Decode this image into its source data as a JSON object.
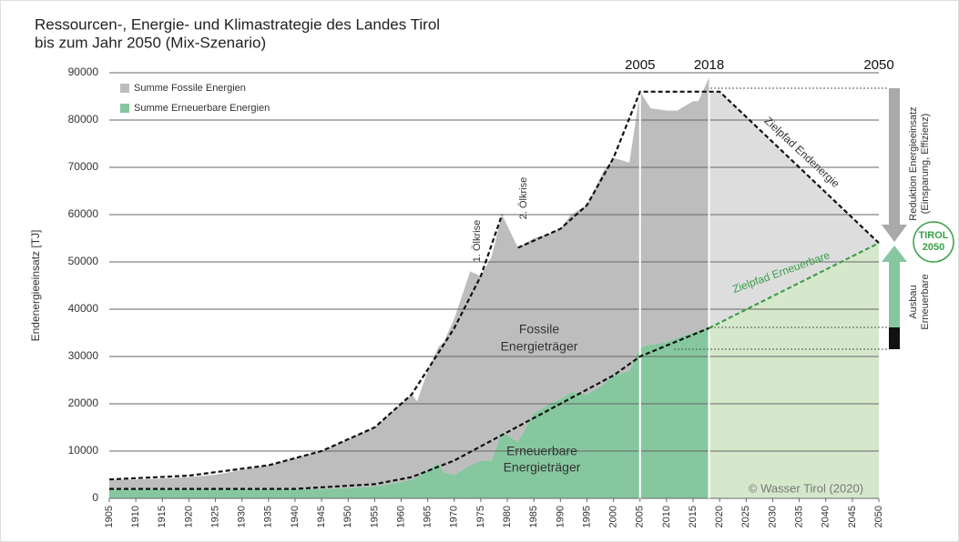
{
  "chart_data": {
    "type": "area",
    "title": "Ressourcen-, Energie- und Klimastrategie des Landes Tirol",
    "subtitle": "bis zum Jahr 2050 (Mix-Szenario)",
    "y_label": "Endenergieeinsatz [TJ]",
    "stacked": true,
    "grid": true,
    "x": [
      1905,
      1910,
      1915,
      1920,
      1925,
      1930,
      1935,
      1940,
      1945,
      1950,
      1955,
      1960,
      1962,
      1963,
      1965,
      1967,
      1968,
      1970,
      1973,
      1975,
      1977,
      1979,
      1982,
      1985,
      1988,
      1990,
      1992,
      1995,
      1998,
      2000,
      2003,
      2005,
      2007,
      2010,
      2012,
      2015,
      2016,
      2018
    ],
    "series": [
      {
        "name": "Summe Erneuerbare Energien",
        "color": "#86c79f",
        "values": [
          2000,
          2000,
          2000,
          2000,
          2000,
          2000,
          2000,
          2000,
          2000,
          2200,
          2500,
          3500,
          4000,
          4500,
          6000,
          7500,
          5500,
          5000,
          7000,
          8000,
          8000,
          14000,
          12000,
          18000,
          20000,
          21000,
          22500,
          22000,
          24000,
          26000,
          27000,
          32000,
          32500,
          33000,
          34000,
          35000,
          35500,
          36000
        ]
      },
      {
        "name": "Summe Fossile Energien",
        "color": "#bdbdbd",
        "values": [
          2000,
          2000,
          2200,
          2500,
          3000,
          4000,
          5000,
          6500,
          8000,
          10300,
          12500,
          16500,
          18000,
          16000,
          21000,
          24500,
          27500,
          33000,
          41000,
          39000,
          43000,
          46000,
          41000,
          37000,
          36000,
          36000,
          37500,
          40000,
          45000,
          46000,
          44000,
          54000,
          50000,
          49000,
          48000,
          49000,
          48500,
          53000
        ]
      }
    ],
    "projection": {
      "x": [
        2018,
        2020,
        2050
      ],
      "series": [
        {
          "color": "#d6e8cc",
          "values": [
            36000,
            37000,
            54000
          ]
        },
        {
          "color": "#dddddd",
          "values": [
            50000,
            49000,
            0
          ]
        }
      ]
    },
    "trend_lines": [
      {
        "color": "#111111",
        "x": [
          1905,
          1920,
          1935,
          1945,
          1955,
          1962,
          1970,
          1975,
          1979
        ],
        "values": [
          4000,
          4800,
          7000,
          10000,
          15000,
          22000,
          36000,
          47000,
          60000
        ]
      },
      {
        "color": "#111111",
        "x": [
          1982,
          1990,
          1995,
          2000,
          2005,
          2020,
          2050
        ],
        "values": [
          53000,
          57000,
          62000,
          72000,
          86000,
          86000,
          54000
        ]
      },
      {
        "color": "#111111",
        "x": [
          1905,
          1940,
          1955,
          1962,
          1970,
          1980,
          1990,
          2000,
          2005,
          2018
        ],
        "values": [
          2000,
          2000,
          3000,
          4500,
          8000,
          14000,
          20000,
          26000,
          30000,
          36000
        ]
      },
      {
        "color": "#3aa04a",
        "x": [
          2018,
          2050
        ],
        "values": [
          36000,
          54000
        ]
      }
    ],
    "markers": [
      2005,
      2018,
      2050
    ],
    "annotations": [
      "1. Ölkrise",
      "2. Ölkrise",
      "Fossile",
      "Energieträger",
      "Erneuerbare",
      "Energieträger",
      "Zielpfad Endenergie",
      "Zielpfad Erneuerbare",
      "© Wasser Tirol (2020)",
      "Reduktion Energieeinsatz",
      "(Einsparung, Effizienz)",
      "Ausbau",
      "Erneuerbare",
      "TIROL",
      "2050"
    ],
    "xlim": [
      1905,
      2050
    ],
    "xticks": [
      1905,
      1910,
      1915,
      1920,
      1925,
      1930,
      1935,
      1940,
      1945,
      1950,
      1955,
      1960,
      1965,
      1970,
      1975,
      1980,
      1985,
      1990,
      1995,
      2000,
      2005,
      2010,
      2015,
      2020,
      2025,
      2030,
      2035,
      2040,
      2045,
      2050
    ],
    "ylim": [
      0,
      90000
    ],
    "yticks": [
      0,
      10000,
      20000,
      30000,
      40000,
      50000,
      60000,
      70000,
      80000,
      90000
    ]
  }
}
